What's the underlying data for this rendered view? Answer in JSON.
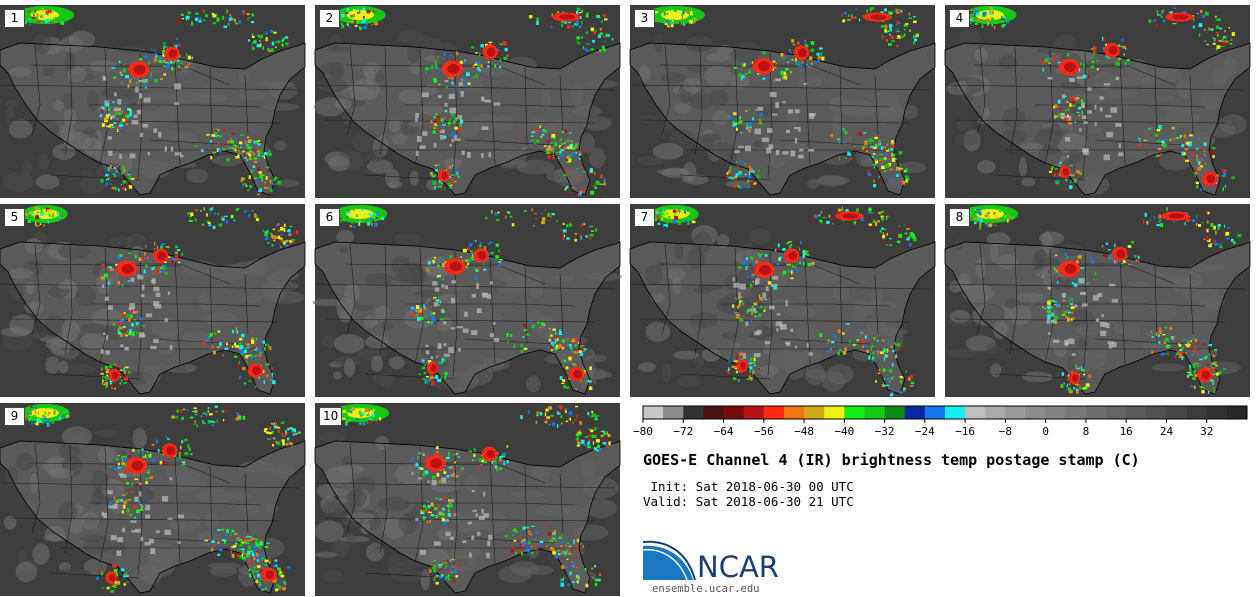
{
  "panels": [
    {
      "label": "1"
    },
    {
      "label": "2"
    },
    {
      "label": "3"
    },
    {
      "label": "4"
    },
    {
      "label": "5"
    },
    {
      "label": "6"
    },
    {
      "label": "7"
    },
    {
      "label": "8"
    },
    {
      "label": "9"
    },
    {
      "label": "10"
    }
  ],
  "colorbar": {
    "ticks": [
      "−80",
      "−72",
      "−64",
      "−56",
      "−48",
      "−40",
      "−32",
      "−24",
      "−16",
      "−8",
      "0",
      "8",
      "16",
      "24",
      "32"
    ],
    "colors": [
      "#c8c8c8",
      "#8c8c8c",
      "#323232",
      "#4b1414",
      "#780a0a",
      "#b41414",
      "#ff2814",
      "#f07814",
      "#d2aa14",
      "#f0f014",
      "#14f014",
      "#14c814",
      "#0a8c14",
      "#0a28a0",
      "#1478f0",
      "#14f0f0",
      "#bebebe",
      "#aaaaaa",
      "#9a9a9a",
      "#8c8c8c",
      "#828282",
      "#787878",
      "#6e6e6e",
      "#646464",
      "#5a5a5a",
      "#505050",
      "#464646",
      "#3c3c3c",
      "#323232",
      "#282828"
    ]
  },
  "info": {
    "title": "GOES-E Channel 4 (IR) brightness temp postage stamp (C)",
    "init": " Init: Sat 2018-06-30 00 UTC",
    "valid": "Valid: Sat 2018-06-30 21 UTC"
  },
  "logo": {
    "name": "NCAR",
    "site": "ensemble.ucar.edu",
    "colors": {
      "blue": "#1a78c2",
      "navy": "#1a3f77"
    }
  }
}
